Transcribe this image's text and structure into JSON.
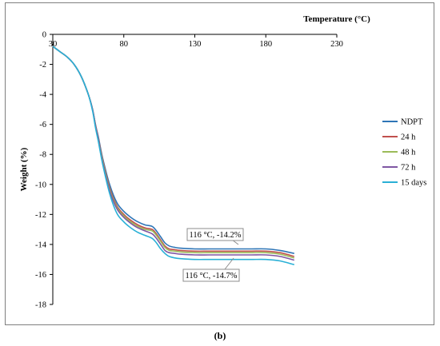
{
  "chart_data": {
    "type": "line",
    "xlabel": "Temperature (°C)",
    "ylabel": "Weight (%)",
    "xlim": [
      30,
      230
    ],
    "ylim": [
      -18,
      0
    ],
    "xticks": [
      30,
      80,
      130,
      180,
      230
    ],
    "yticks": [
      0,
      -2,
      -4,
      -6,
      -8,
      -10,
      -12,
      -14,
      -16,
      -18
    ],
    "legend_position": "right",
    "series": [
      {
        "name": "NDPT",
        "color": "#2e75b6",
        "x": [
          30,
          35,
          40,
          45,
          50,
          55,
          58,
          60,
          62,
          65,
          70,
          75,
          80,
          85,
          90,
          95,
          100,
          103,
          106,
          109,
          112,
          116,
          120,
          130,
          140,
          150,
          160,
          170,
          180,
          190,
          200
        ],
        "y": [
          -0.8,
          -1.15,
          -1.5,
          -2.0,
          -2.8,
          -4.0,
          -5.0,
          -6.0,
          -6.8,
          -8.2,
          -10.0,
          -11.2,
          -11.8,
          -12.2,
          -12.5,
          -12.7,
          -12.8,
          -13.1,
          -13.5,
          -13.9,
          -14.1,
          -14.2,
          -14.25,
          -14.3,
          -14.3,
          -14.3,
          -14.3,
          -14.3,
          -14.3,
          -14.4,
          -14.6
        ]
      },
      {
        "name": "24 h",
        "color": "#c0504d",
        "x": [
          30,
          35,
          40,
          45,
          50,
          55,
          58,
          60,
          62,
          65,
          70,
          75,
          80,
          85,
          90,
          95,
          100,
          103,
          106,
          109,
          112,
          116,
          120,
          130,
          140,
          150,
          160,
          170,
          180,
          190,
          200
        ],
        "y": [
          -0.8,
          -1.15,
          -1.5,
          -2.0,
          -2.8,
          -4.0,
          -5.0,
          -6.0,
          -6.9,
          -8.3,
          -10.2,
          -11.4,
          -12.0,
          -12.4,
          -12.7,
          -12.9,
          -13.0,
          -13.3,
          -13.7,
          -14.1,
          -14.3,
          -14.35,
          -14.4,
          -14.45,
          -14.45,
          -14.45,
          -14.45,
          -14.45,
          -14.45,
          -14.55,
          -14.8
        ]
      },
      {
        "name": "48 h",
        "color": "#9bbb59",
        "x": [
          30,
          35,
          40,
          45,
          50,
          55,
          58,
          60,
          62,
          65,
          70,
          75,
          80,
          85,
          90,
          95,
          100,
          103,
          106,
          109,
          112,
          116,
          120,
          130,
          140,
          150,
          160,
          170,
          180,
          190,
          200
        ],
        "y": [
          -0.8,
          -1.15,
          -1.5,
          -2.0,
          -2.8,
          -4.0,
          -5.0,
          -6.1,
          -7.0,
          -8.4,
          -10.3,
          -11.5,
          -12.1,
          -12.5,
          -12.8,
          -13.0,
          -13.1,
          -13.4,
          -13.8,
          -14.2,
          -14.4,
          -14.45,
          -14.5,
          -14.55,
          -14.55,
          -14.55,
          -14.55,
          -14.55,
          -14.55,
          -14.65,
          -14.9
        ]
      },
      {
        "name": "72 h",
        "color": "#7f56a3",
        "x": [
          30,
          35,
          40,
          45,
          50,
          55,
          58,
          60,
          62,
          65,
          70,
          75,
          80,
          85,
          90,
          95,
          100,
          103,
          106,
          109,
          112,
          116,
          120,
          130,
          140,
          150,
          160,
          170,
          180,
          190,
          200
        ],
        "y": [
          -0.8,
          -1.15,
          -1.5,
          -2.0,
          -2.8,
          -4.0,
          -5.0,
          -6.1,
          -7.0,
          -8.5,
          -10.4,
          -11.6,
          -12.2,
          -12.6,
          -12.9,
          -13.1,
          -13.3,
          -13.6,
          -14.0,
          -14.4,
          -14.55,
          -14.6,
          -14.65,
          -14.7,
          -14.7,
          -14.7,
          -14.7,
          -14.7,
          -14.7,
          -14.8,
          -15.05
        ]
      },
      {
        "name": "15 days",
        "color": "#2ab0d6",
        "x": [
          30,
          35,
          40,
          45,
          50,
          55,
          58,
          60,
          62,
          65,
          70,
          75,
          80,
          85,
          90,
          95,
          100,
          103,
          106,
          109,
          112,
          116,
          120,
          130,
          140,
          150,
          160,
          170,
          180,
          190,
          200
        ],
        "y": [
          -0.8,
          -1.15,
          -1.5,
          -2.0,
          -2.8,
          -4.0,
          -5.1,
          -6.2,
          -7.1,
          -8.6,
          -10.6,
          -11.9,
          -12.5,
          -12.9,
          -13.2,
          -13.4,
          -13.6,
          -13.9,
          -14.3,
          -14.6,
          -14.8,
          -14.9,
          -14.95,
          -15.0,
          -15.0,
          -15.0,
          -15.0,
          -15.0,
          -15.0,
          -15.1,
          -15.35
        ]
      }
    ],
    "annotations": [
      {
        "text": "116 °C, -14.2%",
        "x": 116,
        "y": -14.2
      },
      {
        "text": "116 °C, -14.7%",
        "x": 116,
        "y": -14.7
      }
    ]
  },
  "caption": "(b)"
}
